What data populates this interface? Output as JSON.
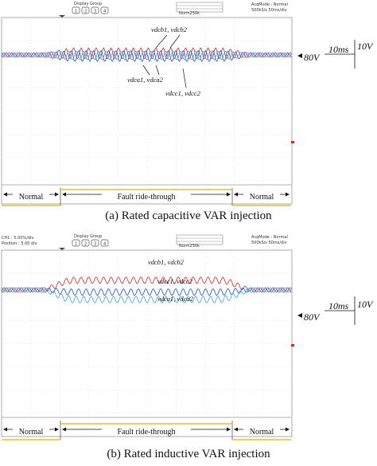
{
  "panels": [
    {
      "id": "a",
      "caption": "(a)  Rated capacitive VAR injection",
      "header": {
        "display_group": "Display Group",
        "buttons": [
          "1",
          "2",
          "3",
          "4"
        ],
        "acq_mode": "AcqMode  : Normal",
        "sample_rate": "500kS/s    50ms/div",
        "small_label": "Norm250k"
      },
      "legend": {
        "ch1": "",
        "ch2": ""
      },
      "annotations": {
        "upper": "vdcb1, vdcb2",
        "lower1": "vdca1, vdca2",
        "lower2": "vdcc1, vdcc2"
      },
      "scale": {
        "time": "10ms",
        "voltage": "10V",
        "level": "80V"
      },
      "segments": [
        "Normal",
        "Fault ride-through",
        "Normal"
      ]
    },
    {
      "id": "b",
      "caption": "(b)  Rated inductive VAR injection",
      "header": {
        "display_group": "Display Group",
        "buttons": [
          "1",
          "2",
          "3",
          "4"
        ],
        "acq_mode": "AcqMode  : Normal",
        "sample_rate": "500kS/s    50ms/div",
        "small_label": "Norm250k",
        "ch_line1": "CH1   : 5.00%/div",
        "ch_line2": "Position : 5.00 div"
      },
      "annotations": {
        "upper": "vdcb1, vdcb2",
        "lower1": "vdcc1, vdcc2",
        "lower2": "vdca1, vdca2"
      },
      "scale": {
        "time": "10ms",
        "voltage": "10V",
        "level": "80V"
      },
      "segments": [
        "Normal",
        "Fault ride-through",
        "Normal"
      ]
    }
  ],
  "chart_data": [
    {
      "type": "line",
      "title": "",
      "xlabel": "",
      "ylabel": "",
      "x_unit": "ms",
      "time_div_ms": 10,
      "volt_div_V": 10,
      "baseline_V": 80,
      "fault_window_ms": [
        0,
        130
      ],
      "series": [
        {
          "name": "vdcb1, vdcb2",
          "color": "#d62728",
          "mean_offset_V": 1.5,
          "ripple_V": [
            2.0,
            5.0
          ]
        },
        {
          "name": "vdca1, vdca2",
          "color": "#1f4fd1",
          "mean_offset_V": -1.0,
          "ripple_V": [
            2.0,
            5.0
          ]
        },
        {
          "name": "vdcc1, vdcc2",
          "color": "#38a8d8",
          "mean_offset_V": -0.5,
          "ripple_V": [
            2.0,
            4.0
          ]
        }
      ]
    },
    {
      "type": "line",
      "title": "",
      "xlabel": "",
      "ylabel": "",
      "x_unit": "ms",
      "time_div_ms": 10,
      "volt_div_V": 10,
      "baseline_V": 80,
      "fault_window_ms": [
        0,
        130
      ],
      "series": [
        {
          "name": "vdcb1, vdcb2",
          "color": "#d62728",
          "mean_offset_V": [
            0,
            9
          ],
          "ripple_V": [
            2.0,
            3.0
          ]
        },
        {
          "name": "vdcc1, vdcc2",
          "color": "#1f4fd1",
          "mean_offset_V": [
            0,
            -2
          ],
          "ripple_V": [
            2.0,
            3.0
          ]
        },
        {
          "name": "vdca1, vdca2",
          "color": "#38a8d8",
          "mean_offset_V": [
            0,
            -9
          ],
          "ripple_V": [
            2.0,
            3.0
          ]
        }
      ]
    }
  ]
}
